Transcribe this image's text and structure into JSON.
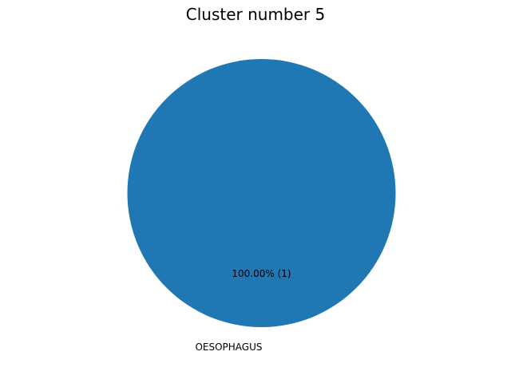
{
  "chart_data": {
    "type": "pie",
    "title": "Cluster number 5",
    "slices": [
      {
        "label": "OESOPHAGUS",
        "value": 1,
        "percent_label": "100.00%  (1)",
        "color": "#1f77b4"
      }
    ]
  }
}
